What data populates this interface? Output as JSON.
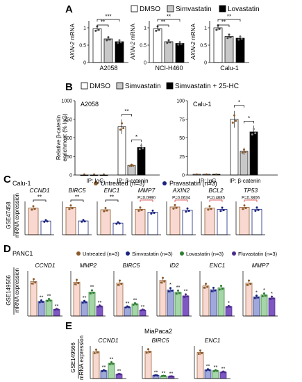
{
  "figure": {
    "panel_letters": [
      "A",
      "B",
      "C",
      "D",
      "E"
    ],
    "colors": {
      "dmso": "#ffffff",
      "simvastatin": "#c8c8c8",
      "lovastatin": "#000000",
      "untreated_fill": "#f8d8d0",
      "untreated_dot": "#8b5a2b",
      "pravastatin_dot": "#1a237e",
      "simva_D": "#9fa8da",
      "lova_D": "#a5d6a7",
      "fluva_D": "#7e57c2",
      "purple_dark": "#4a2a8a",
      "green_dark": "#2e7d32",
      "navy": "#1a237e",
      "pvalue_red": "#d32f2f"
    },
    "panel_A": {
      "legend": [
        "DMSO",
        "Simvastatin",
        "Lovastatin"
      ],
      "ylabel_gene": "AXIN-2",
      "ylabel_suffix": " mRNA"
    },
    "panel_B": {
      "legend": [
        "DMSO",
        "Simvastatin",
        "Simvastatin + 25-HC"
      ],
      "ylabel_line1": "Relative β-catenin",
      "ylabel_line2": "enrichment (% IgG)"
    },
    "panel_C": {
      "cell": "Calu-1",
      "legend": [
        "Untreated (n=3)",
        "Pravastatin (n=3)"
      ],
      "dataset": "GSE47458",
      "ylabel": "mRNA expression"
    },
    "panel_D": {
      "cell": "PANC1",
      "legend": [
        "Untreated (n=3)",
        "Simvastatin (n=3)",
        "Lovastatin (n=3)",
        "Fluvastatin (n=3)"
      ],
      "dataset": "GSE149566",
      "ylabel": "mRNA expression"
    },
    "panel_E": {
      "cell": "MiaPaca2"
    }
  },
  "chart_data": [
    {
      "id": "A1",
      "type": "bar",
      "panel": "A",
      "xlabel": "A2058",
      "categories": [
        "DMSO",
        "Simvastatin",
        "Lovastatin"
      ],
      "values": [
        0.97,
        0.68,
        0.6
      ],
      "ylim": [
        0,
        1.2
      ],
      "yticks": [
        0,
        0.5,
        1.0
      ],
      "sig": [
        {
          "a": 0,
          "b": 1,
          "label": "**"
        },
        {
          "a": 0,
          "b": 2,
          "label": "***"
        }
      ]
    },
    {
      "id": "A2",
      "type": "bar",
      "panel": "A",
      "xlabel": "NCI-H460",
      "categories": [
        "DMSO",
        "Simvastatin",
        "Lovastatin"
      ],
      "values": [
        0.97,
        0.6,
        0.55
      ],
      "ylim": [
        0,
        1.2
      ],
      "yticks": [
        0,
        0.5,
        1.0
      ],
      "sig": [
        {
          "a": 0,
          "b": 1,
          "label": "**"
        },
        {
          "a": 0,
          "b": 2,
          "label": "**"
        }
      ]
    },
    {
      "id": "A3",
      "type": "bar",
      "panel": "A",
      "xlabel": "Calu-1",
      "categories": [
        "DMSO",
        "Simvastatin",
        "Lovastatin"
      ],
      "values": [
        1.0,
        0.75,
        0.7
      ],
      "ylim": [
        0,
        1.2
      ],
      "yticks": [
        0,
        0.5,
        1.0
      ],
      "sig": [
        {
          "a": 0,
          "b": 1,
          "label": "**"
        },
        {
          "a": 0,
          "b": 2,
          "label": "**"
        }
      ]
    },
    {
      "id": "B1",
      "type": "bar",
      "panel": "B",
      "title": "A2058",
      "groups": [
        "IP: IgG",
        "IP: β-catenin"
      ],
      "series": [
        {
          "name": "DMSO",
          "values": [
            1,
            650
          ]
        },
        {
          "name": "Simvastatin",
          "values": [
            1,
            130
          ]
        },
        {
          "name": "Simvastatin + 25-HC",
          "values": [
            1,
            370
          ]
        }
      ],
      "ylim": [
        0,
        1000
      ],
      "yticks": [
        0,
        250,
        500,
        750,
        1000
      ],
      "sig": [
        {
          "a": 3,
          "b": 4,
          "label": "**"
        },
        {
          "a": 4,
          "b": 5,
          "label": "*"
        }
      ]
    },
    {
      "id": "B2",
      "type": "bar",
      "panel": "B",
      "title": "Calu-1",
      "groups": [
        "IP: IgG",
        "IP: β-catenin"
      ],
      "series": [
        {
          "name": "DMSO",
          "values": [
            1,
            75
          ]
        },
        {
          "name": "Simvastatin",
          "values": [
            1,
            32
          ]
        },
        {
          "name": "Simvastatin + 25-HC",
          "values": [
            1,
            58
          ]
        }
      ],
      "ylim": [
        0,
        100
      ],
      "yticks": [
        0,
        25,
        50,
        75,
        100
      ],
      "sig": [
        {
          "a": 3,
          "b": 4,
          "label": "*"
        },
        {
          "a": 4,
          "b": 5,
          "label": "*"
        }
      ]
    },
    {
      "id": "C1",
      "type": "bar",
      "panel": "C",
      "title": "CCND1",
      "values": [
        6400,
        3300
      ],
      "ylim": [
        0,
        8000
      ],
      "sig": [
        {
          "a": 0,
          "b": 1,
          "label": "**"
        }
      ]
    },
    {
      "id": "C2",
      "type": "bar",
      "panel": "C",
      "title": "BIRC5",
      "values": [
        1150,
        580
      ],
      "ylim": [
        0,
        1400
      ],
      "sig": [
        {
          "a": 0,
          "b": 1,
          "label": "**"
        }
      ]
    },
    {
      "id": "C3",
      "type": "bar",
      "panel": "C",
      "title": "ENC1",
      "values": [
        900,
        420
      ],
      "ylim": [
        0,
        1200
      ],
      "sig": [
        {
          "a": 0,
          "b": 1,
          "label": "**"
        }
      ]
    },
    {
      "id": "C4",
      "type": "bar",
      "panel": "C",
      "title": "MMP7",
      "values": [
        130,
        115
      ],
      "ylim": [
        0,
        170
      ],
      "sig": [
        {
          "a": 0,
          "b": 1,
          "label": "P=0.0990"
        }
      ]
    },
    {
      "id": "C5",
      "type": "bar",
      "panel": "C",
      "title": "AXIN2",
      "values": [
        175,
        155
      ],
      "ylim": [
        0,
        210
      ],
      "sig": [
        {
          "a": 0,
          "b": 1,
          "label": "P=0.0634"
        }
      ]
    },
    {
      "id": "C6",
      "type": "bar",
      "panel": "C",
      "title": "BCL2",
      "values": [
        20,
        19
      ],
      "ylim": [
        0,
        25
      ],
      "sig": [
        {
          "a": 0,
          "b": 1,
          "label": "P=0.4685"
        }
      ]
    },
    {
      "id": "C7",
      "type": "bar",
      "panel": "C",
      "title": "TP53",
      "values": [
        1400,
        1300
      ],
      "ylim": [
        0,
        1700
      ],
      "sig": [
        {
          "a": 0,
          "b": 1,
          "label": "P=0.3806"
        }
      ]
    },
    {
      "id": "D1",
      "type": "bar",
      "panel": "D",
      "title": "CCND1",
      "values": [
        130,
        55,
        60,
        25
      ],
      "ylim": [
        0,
        170
      ],
      "stars": [
        "",
        "**",
        "**",
        "**"
      ]
    },
    {
      "id": "D2",
      "type": "bar",
      "panel": "D",
      "title": "MMP2",
      "values": [
        120,
        50,
        85,
        35
      ],
      "ylim": [
        0,
        160
      ],
      "stars": [
        "",
        "**",
        "**",
        "**"
      ]
    },
    {
      "id": "D3",
      "type": "bar",
      "panel": "D",
      "title": "BIRC5",
      "values": [
        110,
        30,
        40,
        20
      ],
      "ylim": [
        0,
        150
      ],
      "stars": [
        "",
        "**",
        "**",
        "**"
      ]
    },
    {
      "id": "D4",
      "type": "bar",
      "panel": "D",
      "title": "ID2",
      "values": [
        30,
        22,
        20,
        17
      ],
      "ylim": [
        0,
        38
      ],
      "stars": [
        "",
        "*",
        "**",
        "**"
      ]
    },
    {
      "id": "D5",
      "type": "bar",
      "panel": "D",
      "title": "ENC1",
      "values": [
        16,
        14,
        15,
        5
      ],
      "ylim": [
        0,
        24
      ],
      "stars": [
        "",
        "",
        "",
        "*"
      ]
    },
    {
      "id": "D6",
      "type": "bar",
      "panel": "D",
      "title": "MMP7",
      "values": [
        3.3,
        1.9,
        2.1,
        1.8
      ],
      "ylim": [
        0,
        4.5
      ],
      "stars": [
        "",
        "*",
        "*",
        "*"
      ]
    },
    {
      "id": "E1",
      "type": "bar",
      "panel": "E",
      "title": "CCND1",
      "values": [
        62,
        18,
        35,
        10
      ],
      "ylim": [
        0,
        75
      ],
      "stars": [
        "",
        "**",
        "**",
        "**"
      ]
    },
    {
      "id": "E2",
      "type": "bar",
      "panel": "E",
      "title": "BIRC5",
      "values": [
        105,
        12,
        10,
        8
      ],
      "ylim": [
        0,
        125
      ],
      "stars": [
        "",
        "**",
        "**",
        "**"
      ]
    },
    {
      "id": "E3",
      "type": "bar",
      "panel": "E",
      "title": "ENC1",
      "values": [
        60,
        20,
        18,
        15
      ],
      "ylim": [
        0,
        75
      ],
      "stars": [
        "",
        "**",
        "**",
        "**"
      ]
    }
  ]
}
